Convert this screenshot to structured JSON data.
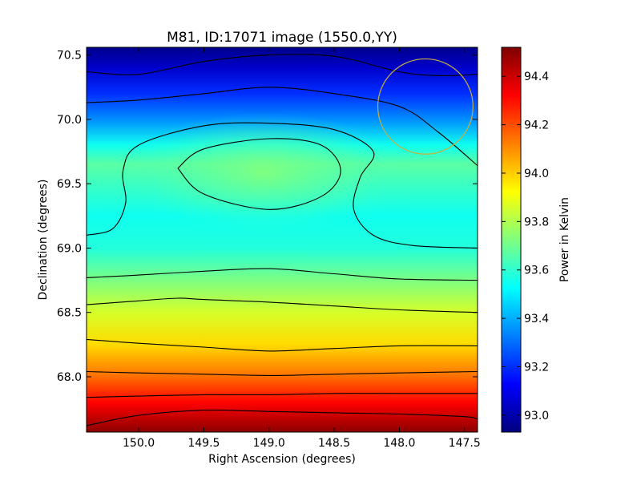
{
  "chart_data": {
    "type": "heatmap",
    "title": "M81, ID:17071 image (1550.0,YY)",
    "xlabel": "Right Ascension (degrees)",
    "ylabel": "Declination (degrees)",
    "xlim": [
      150.4,
      147.4
    ],
    "ylim": [
      67.57,
      70.56
    ],
    "x_ticks": [
      {
        "value": 150.0,
        "label": "150.0"
      },
      {
        "value": 149.5,
        "label": "149.5"
      },
      {
        "value": 149.0,
        "label": "149.0"
      },
      {
        "value": 148.5,
        "label": "148.5"
      },
      {
        "value": 148.0,
        "label": "148.0"
      },
      {
        "value": 147.5,
        "label": "147.5"
      }
    ],
    "y_ticks": [
      {
        "value": 68.0,
        "label": "68.0"
      },
      {
        "value": 68.5,
        "label": "68.5"
      },
      {
        "value": 69.0,
        "label": "69.0"
      },
      {
        "value": 69.5,
        "label": "69.5"
      },
      {
        "value": 70.0,
        "label": "70.0"
      },
      {
        "value": 70.5,
        "label": "70.5"
      }
    ],
    "colorbar": {
      "label": "Power in Kelvin",
      "range": [
        92.93,
        94.52
      ],
      "colormap": "jet",
      "ticks": [
        {
          "value": 93.0,
          "label": "93.0"
        },
        {
          "value": 93.2,
          "label": "93.2"
        },
        {
          "value": 93.4,
          "label": "93.4"
        },
        {
          "value": 93.6,
          "label": "93.6"
        },
        {
          "value": 93.8,
          "label": "93.8"
        },
        {
          "value": 94.0,
          "label": "94.0"
        },
        {
          "value": 94.2,
          "label": "94.2"
        },
        {
          "value": 94.4,
          "label": "94.4"
        }
      ]
    },
    "intensity_profile": {
      "description": "Power values by declination (roughly uniform in RA)",
      "dec": [
        67.57,
        67.8,
        68.0,
        68.25,
        68.5,
        68.75,
        69.0,
        69.25,
        69.5,
        69.65,
        69.8,
        70.0,
        70.2,
        70.4,
        70.56
      ],
      "power": [
        94.5,
        94.32,
        94.15,
        93.98,
        93.86,
        93.72,
        93.58,
        93.55,
        93.62,
        93.67,
        93.55,
        93.35,
        93.2,
        93.05,
        92.95
      ]
    },
    "contour_lines": [
      [
        [
          150.4,
          67.62
        ],
        [
          150.0,
          67.7
        ],
        [
          149.5,
          67.74
        ],
        [
          149.0,
          67.73
        ],
        [
          148.5,
          67.72
        ],
        [
          148.0,
          67.71
        ],
        [
          147.5,
          67.69
        ],
        [
          147.4,
          67.67
        ]
      ],
      [
        [
          150.4,
          67.84
        ],
        [
          150.0,
          67.85
        ],
        [
          149.5,
          67.86
        ],
        [
          149.0,
          67.86
        ],
        [
          148.5,
          67.87
        ],
        [
          148.0,
          67.87
        ],
        [
          147.4,
          67.87
        ]
      ],
      [
        [
          150.4,
          68.04
        ],
        [
          150.0,
          68.03
        ],
        [
          149.5,
          68.02
        ],
        [
          149.0,
          68.01
        ],
        [
          148.5,
          68.02
        ],
        [
          148.0,
          68.03
        ],
        [
          147.4,
          68.04
        ]
      ],
      [
        [
          150.4,
          68.29
        ],
        [
          150.0,
          68.26
        ],
        [
          149.5,
          68.23
        ],
        [
          149.0,
          68.2
        ],
        [
          148.5,
          68.22
        ],
        [
          148.0,
          68.24
        ],
        [
          147.4,
          68.24
        ]
      ],
      [
        [
          150.4,
          68.56
        ],
        [
          150.0,
          68.59
        ],
        [
          149.7,
          68.61
        ],
        [
          149.5,
          68.6
        ],
        [
          149.0,
          68.58
        ],
        [
          148.5,
          68.55
        ],
        [
          148.0,
          68.52
        ],
        [
          147.4,
          68.5
        ]
      ],
      [
        [
          150.4,
          68.77
        ],
        [
          150.0,
          68.79
        ],
        [
          149.5,
          68.82
        ],
        [
          149.0,
          68.84
        ],
        [
          148.5,
          68.8
        ],
        [
          148.0,
          68.76
        ],
        [
          147.4,
          68.75
        ]
      ],
      [
        [
          150.4,
          69.1
        ],
        [
          150.2,
          69.15
        ],
        [
          150.1,
          69.35
        ],
        [
          150.12,
          69.6
        ],
        [
          150.0,
          69.8
        ],
        [
          149.5,
          69.95
        ],
        [
          149.0,
          69.97
        ],
        [
          148.5,
          69.92
        ],
        [
          148.2,
          69.75
        ],
        [
          148.3,
          69.55
        ],
        [
          148.35,
          69.3
        ],
        [
          148.2,
          69.1
        ],
        [
          147.9,
          69.02
        ],
        [
          147.4,
          69.0
        ]
      ],
      [
        [
          149.7,
          69.62
        ],
        [
          149.5,
          69.77
        ],
        [
          149.0,
          69.85
        ],
        [
          148.6,
          69.8
        ],
        [
          148.45,
          69.6
        ],
        [
          148.6,
          69.4
        ],
        [
          149.0,
          69.3
        ],
        [
          149.5,
          69.42
        ],
        [
          149.7,
          69.62
        ]
      ],
      [
        [
          150.4,
          70.13
        ],
        [
          150.0,
          70.15
        ],
        [
          149.5,
          70.2
        ],
        [
          149.0,
          70.25
        ],
        [
          148.5,
          70.2
        ],
        [
          148.0,
          70.1
        ],
        [
          147.7,
          69.9
        ],
        [
          147.4,
          69.64
        ]
      ],
      [
        [
          150.4,
          70.37
        ],
        [
          150.0,
          70.35
        ],
        [
          149.5,
          70.45
        ],
        [
          149.0,
          70.5
        ],
        [
          148.5,
          70.49
        ],
        [
          148.0,
          70.37
        ],
        [
          147.7,
          70.34
        ],
        [
          147.4,
          70.35
        ]
      ]
    ],
    "circle": {
      "ra": 147.8,
      "dec": 70.1,
      "radius_deg": 0.37,
      "color": "#c8b040"
    }
  }
}
